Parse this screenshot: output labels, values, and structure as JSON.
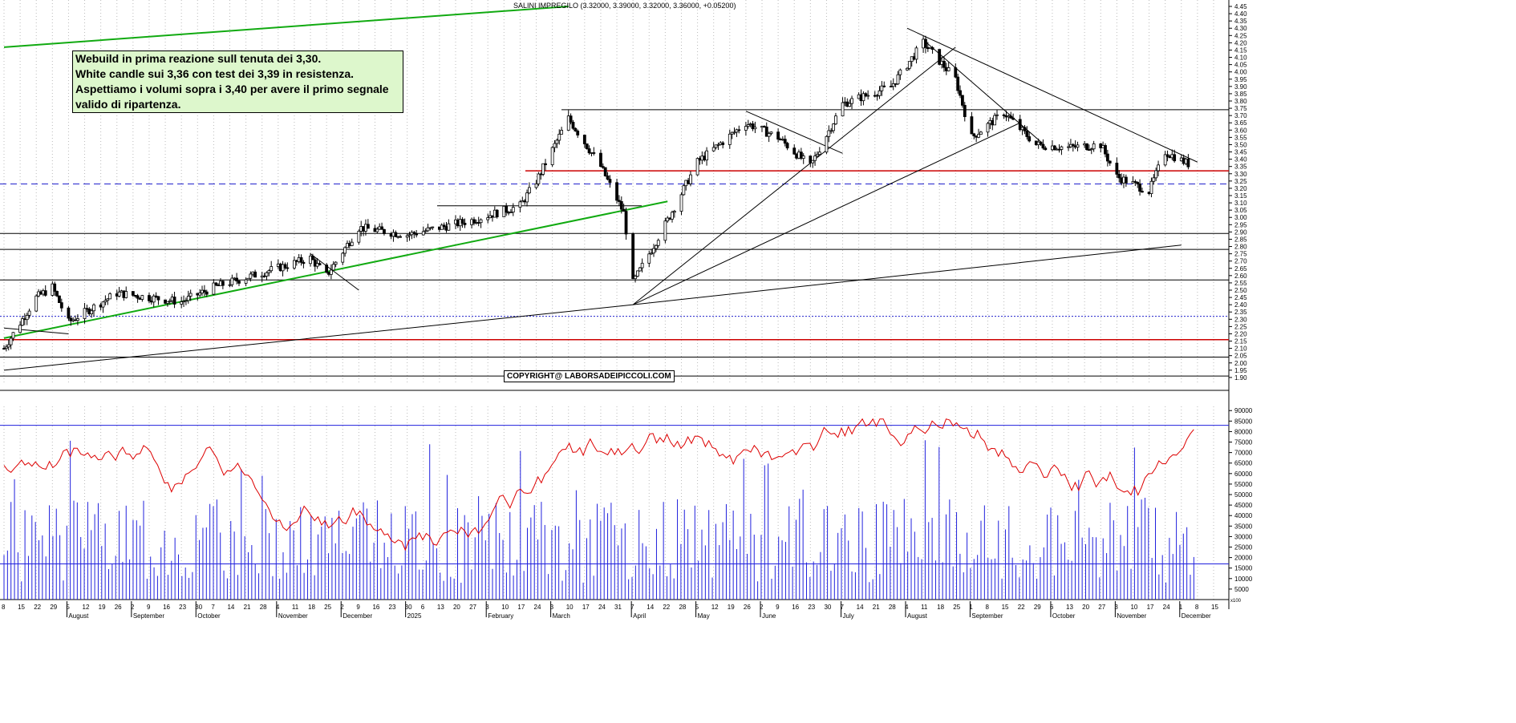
{
  "chart_data": [
    {
      "type": "candlestick",
      "title": "SALINI IMPREGILO (3.32000, 3.39000, 3.32000, 3.36000, +0.05200)",
      "ylim": [
        1.85,
        4.45
      ],
      "y_ticks": [
        "4.45",
        "4.40",
        "4.35",
        "4.30",
        "4.25",
        "4.20",
        "4.15",
        "4.10",
        "4.05",
        "4.00",
        "3.95",
        "3.90",
        "3.85",
        "3.80",
        "3.75",
        "3.70",
        "3.65",
        "3.60",
        "3.55",
        "3.50",
        "3.45",
        "3.40",
        "3.35",
        "3.30",
        "3.25",
        "3.20",
        "3.15",
        "3.10",
        "3.05",
        "3.00",
        "2.95",
        "2.90",
        "2.85",
        "2.80",
        "2.75",
        "2.70",
        "2.65",
        "2.60",
        "2.55",
        "2.50",
        "2.45",
        "2.40",
        "2.35",
        "2.30",
        "2.25",
        "2.20",
        "2.15",
        "2.10",
        "2.05",
        "2.00",
        "1.95",
        "1.90"
      ],
      "series": [
        {
          "x": "2024-07-08",
          "close": 2.1
        },
        {
          "x": "2024-07-22",
          "close": 2.45
        },
        {
          "x": "2024-07-29",
          "close": 2.52
        },
        {
          "x": "2024-08-05",
          "close": 2.28
        },
        {
          "x": "2024-08-26",
          "close": 2.48
        },
        {
          "x": "2024-09-23",
          "close": 2.42
        },
        {
          "x": "2024-10-07",
          "close": 2.52
        },
        {
          "x": "2024-10-28",
          "close": 2.62
        },
        {
          "x": "2024-11-18",
          "close": 2.72
        },
        {
          "x": "2024-11-25",
          "close": 2.6
        },
        {
          "x": "2024-12-09",
          "close": 2.93
        },
        {
          "x": "2024-12-30",
          "close": 2.88
        },
        {
          "x": "2025-01-27",
          "close": 2.98
        },
        {
          "x": "2025-02-17",
          "close": 3.08
        },
        {
          "x": "2025-02-24",
          "close": 3.25
        },
        {
          "x": "2025-03-10",
          "close": 3.68
        },
        {
          "x": "2025-03-24",
          "close": 3.35
        },
        {
          "x": "2025-04-03",
          "close": 3.03
        },
        {
          "x": "2025-04-07",
          "close": 2.55
        },
        {
          "x": "2025-04-22",
          "close": 2.98
        },
        {
          "x": "2025-05-05",
          "close": 3.38
        },
        {
          "x": "2025-05-26",
          "close": 3.65
        },
        {
          "x": "2025-06-09",
          "close": 3.55
        },
        {
          "x": "2025-06-23",
          "close": 3.35
        },
        {
          "x": "2025-07-07",
          "close": 3.78
        },
        {
          "x": "2025-07-28",
          "close": 3.9
        },
        {
          "x": "2025-08-11",
          "close": 4.2
        },
        {
          "x": "2025-08-25",
          "close": 3.95
        },
        {
          "x": "2025-09-01",
          "close": 3.55
        },
        {
          "x": "2025-09-15",
          "close": 3.72
        },
        {
          "x": "2025-09-29",
          "close": 3.5
        },
        {
          "x": "2025-10-13",
          "close": 3.48
        },
        {
          "x": "2025-10-27",
          "close": 3.5
        },
        {
          "x": "2025-11-03",
          "close": 3.28
        },
        {
          "x": "2025-11-17",
          "close": 3.18
        },
        {
          "x": "2025-11-24",
          "close": 3.45
        },
        {
          "x": "2025-12-05",
          "close": 3.36
        }
      ],
      "horizontal_lines": [
        {
          "y": 3.74,
          "color": "#000000",
          "style": "solid"
        },
        {
          "y": 3.32,
          "color": "#cc0000",
          "style": "solid"
        },
        {
          "y": 3.23,
          "color": "#2020cc",
          "style": "dashed"
        },
        {
          "y": 3.08,
          "color": "#000000",
          "style": "solid"
        },
        {
          "y": 2.89,
          "color": "#000000",
          "style": "solid"
        },
        {
          "y": 2.78,
          "color": "#000000",
          "style": "solid"
        },
        {
          "y": 2.57,
          "color": "#000000",
          "style": "solid"
        },
        {
          "y": 2.32,
          "color": "#2020cc",
          "style": "dotted"
        },
        {
          "y": 2.16,
          "color": "#cc0000",
          "style": "solid"
        },
        {
          "y": 2.04,
          "color": "#000000",
          "style": "solid"
        },
        {
          "y": 1.91,
          "color": "#000000",
          "style": "solid"
        }
      ],
      "annotation": [
        "Webuild in prima reazione sull tenuta dei 3,30.",
        "White candle sui 3,36 con test dei 3,39 in resistenza.",
        "Aspettiamo i volumi sopra i 3,40 per avere il primo segnale",
        "valido di ripartenza."
      ],
      "copyright": "COPYRIGHT@ LABORSADEIPICCOLI.COM"
    },
    {
      "type": "bar",
      "ylabel": "",
      "ylim": [
        0,
        92000
      ],
      "y_ticks": [
        "90000",
        "85000",
        "80000",
        "75000",
        "70000",
        "65000",
        "60000",
        "55000",
        "50000",
        "45000",
        "40000",
        "35000",
        "30000",
        "25000",
        "20000",
        "15000",
        "10000",
        "5000"
      ],
      "hlines": [
        83000,
        17000
      ],
      "series": [
        {
          "name": "volume",
          "color": "#2020dd"
        },
        {
          "name": "oscillator",
          "color": "#dd0000"
        }
      ],
      "corner_label": "x100"
    }
  ],
  "x_axis": {
    "day_ticks": [
      "8",
      "15",
      "22",
      "29",
      "5",
      "12",
      "19",
      "26",
      "2",
      "9",
      "16",
      "23",
      "30",
      "7",
      "14",
      "21",
      "28",
      "4",
      "11",
      "18",
      "25",
      "2",
      "9",
      "16",
      "23",
      "30",
      "6",
      "13",
      "20",
      "27",
      "3",
      "10",
      "17",
      "24",
      "3",
      "10",
      "17",
      "24",
      "31",
      "7",
      "14",
      "22",
      "28",
      "5",
      "12",
      "19",
      "26",
      "2",
      "9",
      "16",
      "23",
      "30",
      "7",
      "14",
      "21",
      "28",
      "4",
      "11",
      "18",
      "25",
      "1",
      "8",
      "15",
      "22",
      "29",
      "6",
      "13",
      "20",
      "27",
      "3",
      "10",
      "17",
      "24",
      "1",
      "8",
      "15"
    ],
    "month_labels": [
      "August",
      "September",
      "October",
      "November",
      "December",
      "2025",
      "February",
      "March",
      "April",
      "May",
      "June",
      "July",
      "August",
      "September",
      "October",
      "November",
      "December"
    ]
  },
  "colors": {
    "up": "#ffffff",
    "down": "#000000",
    "grid": "#bbbbbb",
    "volume": "#2020dd",
    "oscillator": "#dd0000",
    "green": "#11aa11"
  }
}
